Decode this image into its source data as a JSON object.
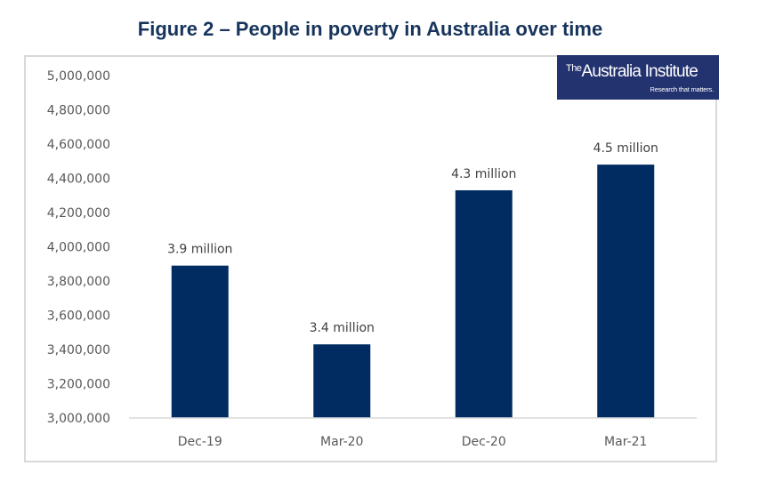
{
  "chart_data": {
    "type": "bar",
    "title": "Figure 2 – People in poverty in Australia over time",
    "xlabel": "",
    "ylabel": "",
    "categories": [
      "Dec-19",
      "Mar-20",
      "Dec-20",
      "Mar-21"
    ],
    "values": [
      3890000,
      3430000,
      4330000,
      4480000
    ],
    "data_labels": [
      "3.9 million",
      "3.4 million",
      "4.3 million",
      "4.5 million"
    ],
    "ylim": [
      3000000,
      5000000
    ],
    "yticks": [
      3000000,
      3200000,
      3400000,
      3600000,
      3800000,
      4000000,
      4200000,
      4400000,
      4600000,
      4800000,
      5000000
    ],
    "ytick_labels": [
      "3,000,000",
      "3,200,000",
      "3,400,000",
      "3,600,000",
      "3,800,000",
      "4,000,000",
      "4,200,000",
      "4,400,000",
      "4,600,000",
      "4,800,000",
      "5,000,000"
    ],
    "grid": false,
    "legend": "none",
    "bar_color": "#002c62"
  },
  "logo": {
    "the": "The",
    "name": "Australia Institute",
    "tagline": "Research that matters."
  },
  "colors": {
    "title": "#17345c",
    "logo_bg": "#23336f"
  }
}
